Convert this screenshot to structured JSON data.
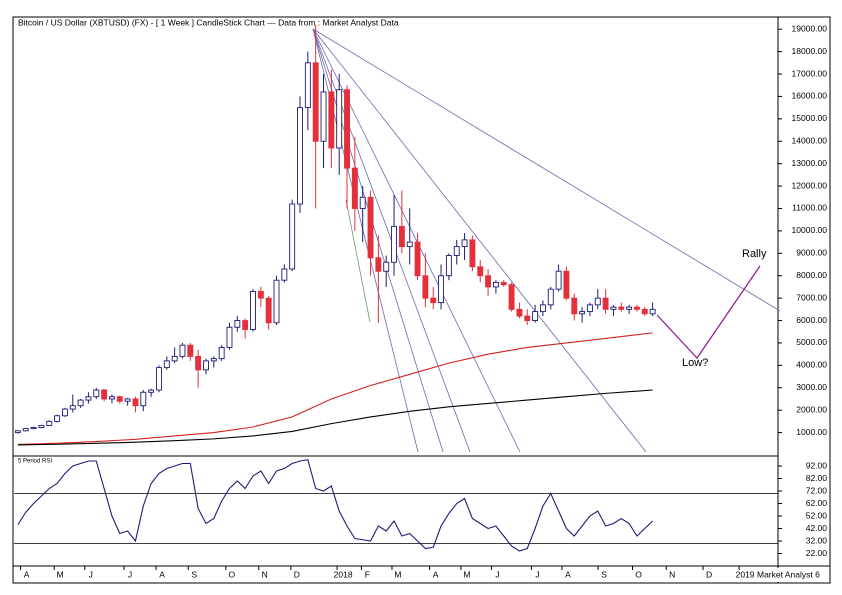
{
  "chart_data": [
    {
      "type": "candlestick",
      "title": "Bitcoin / US Dollar (XBTUSD) (FX) -  [ 1 Week ] CandleStick Chart --- Data from : Market Analyst Data",
      "up_color": "#1c1c78",
      "down_color": "#e3303a",
      "candles": [
        [
          1000,
          1100,
          950,
          1080
        ],
        [
          1080,
          1200,
          1050,
          1180
        ],
        [
          1180,
          1260,
          1150,
          1230
        ],
        [
          1230,
          1350,
          1200,
          1320
        ],
        [
          1320,
          1550,
          1300,
          1500
        ],
        [
          1500,
          1800,
          1450,
          1750
        ],
        [
          1750,
          2100,
          1700,
          2050
        ],
        [
          2050,
          2700,
          1900,
          2200
        ],
        [
          2200,
          2500,
          2100,
          2450
        ],
        [
          2450,
          2800,
          2300,
          2600
        ],
        [
          2600,
          3000,
          2500,
          2900
        ],
        [
          2900,
          2950,
          2400,
          2500
        ],
        [
          2500,
          2700,
          2300,
          2600
        ],
        [
          2600,
          2650,
          2300,
          2400
        ],
        [
          2400,
          2550,
          2200,
          2500
        ],
        [
          2500,
          2600,
          1900,
          2200
        ],
        [
          2200,
          2900,
          1950,
          2800
        ],
        [
          2800,
          2950,
          2600,
          2900
        ],
        [
          2900,
          4000,
          2800,
          3900
        ],
        [
          3900,
          4400,
          3800,
          4200
        ],
        [
          4200,
          4800,
          4100,
          4400
        ],
        [
          4400,
          5000,
          4300,
          4900
        ],
        [
          4900,
          5000,
          4200,
          4400
        ],
        [
          4400,
          4700,
          3000,
          3800
        ],
        [
          3800,
          4300,
          3600,
          4200
        ],
        [
          4200,
          4400,
          3900,
          4300
        ],
        [
          4300,
          4900,
          4200,
          4800
        ],
        [
          4800,
          5900,
          4700,
          5700
        ],
        [
          5700,
          6200,
          5500,
          6000
        ],
        [
          6000,
          6100,
          5200,
          5600
        ],
        [
          5600,
          7400,
          5500,
          7300
        ],
        [
          7300,
          7500,
          6600,
          7000
        ],
        [
          7000,
          7100,
          5600,
          5900
        ],
        [
          5900,
          8000,
          5800,
          7800
        ],
        [
          7800,
          8500,
          7700,
          8300
        ],
        [
          8300,
          11400,
          8200,
          11200
        ],
        [
          11200,
          16000,
          10800,
          15500
        ],
        [
          15500,
          18000,
          14500,
          17500
        ],
        [
          17500,
          19200,
          11000,
          14000
        ],
        [
          14000,
          17000,
          12800,
          16200
        ],
        [
          16200,
          17200,
          12800,
          13700
        ],
        [
          13700,
          17000,
          12500,
          16300
        ],
        [
          16300,
          16500,
          11000,
          12800
        ],
        [
          12800,
          14200,
          10000,
          11000
        ],
        [
          11000,
          12000,
          9500,
          11500
        ],
        [
          11500,
          11800,
          8000,
          8800
        ],
        [
          8800,
          9800,
          5900,
          8200
        ],
        [
          8200,
          8900,
          7500,
          8600
        ],
        [
          8600,
          11600,
          8000,
          10200
        ],
        [
          10200,
          11800,
          9000,
          9300
        ],
        [
          9300,
          11000,
          8500,
          9500
        ],
        [
          9500,
          9900,
          7800,
          8000
        ],
        [
          8000,
          9000,
          6600,
          7000
        ],
        [
          7000,
          7500,
          6500,
          6800
        ],
        [
          6800,
          8500,
          6500,
          8000
        ],
        [
          8000,
          9000,
          7800,
          8900
        ],
        [
          8900,
          9600,
          8500,
          9300
        ],
        [
          9300,
          9900,
          8700,
          9600
        ],
        [
          9600,
          9800,
          8200,
          8400
        ],
        [
          8400,
          8700,
          7700,
          8000
        ],
        [
          8000,
          8300,
          7100,
          7500
        ],
        [
          7500,
          7800,
          7200,
          7700
        ],
        [
          7700,
          7800,
          7500,
          7600
        ],
        [
          7600,
          7700,
          6400,
          6500
        ],
        [
          6500,
          6800,
          6100,
          6200
        ],
        [
          6200,
          6500,
          5800,
          6000
        ],
        [
          6000,
          6700,
          5900,
          6400
        ],
        [
          6400,
          6900,
          6200,
          6700
        ],
        [
          6700,
          7500,
          6500,
          7400
        ],
        [
          7400,
          8500,
          7300,
          8200
        ],
        [
          8200,
          8400,
          6900,
          7000
        ],
        [
          7000,
          7200,
          6000,
          6300
        ],
        [
          6300,
          6600,
          5900,
          6400
        ],
        [
          6400,
          6800,
          6200,
          6700
        ],
        [
          6700,
          7400,
          6500,
          7000
        ],
        [
          7000,
          7400,
          6300,
          6500
        ],
        [
          6500,
          6700,
          6200,
          6600
        ],
        [
          6600,
          6800,
          6400,
          6500
        ],
        [
          6500,
          6700,
          6300,
          6600
        ],
        [
          6600,
          6700,
          6400,
          6500
        ],
        [
          6500,
          6600,
          6200,
          6300
        ],
        [
          6300,
          6800,
          6200,
          6500
        ]
      ],
      "series": [
        {
          "color": "#d42020",
          "x": [
            0,
            5,
            10,
            15,
            20,
            25,
            30,
            35,
            40,
            45,
            50,
            55,
            60,
            65,
            70,
            75,
            81
          ],
          "values": [
            470,
            520,
            600,
            700,
            850,
            1000,
            1250,
            1700,
            2500,
            3100,
            3600,
            4100,
            4500,
            4800,
            5000,
            5200,
            5450
          ]
        },
        {
          "color": "#000000",
          "x": [
            0,
            5,
            10,
            15,
            20,
            25,
            30,
            35,
            40,
            45,
            50,
            55,
            60,
            65,
            70,
            75,
            81
          ],
          "values": [
            450,
            480,
            520,
            570,
            640,
            720,
            850,
            1050,
            1400,
            1700,
            1950,
            2150,
            2300,
            2450,
            2600,
            2750,
            2900
          ]
        }
      ],
      "annotations": [
        "Rally",
        "Low?"
      ],
      "xlim": [
        -0.5,
        97
      ],
      "xticks": [
        {
          "value": 1.1,
          "label": "A"
        },
        {
          "value": 5.4,
          "label": "M"
        },
        {
          "value": 9.3,
          "label": "J"
        },
        {
          "value": 14.3,
          "label": "J"
        },
        {
          "value": 18.4,
          "label": "A"
        },
        {
          "value": 22.5,
          "label": "S"
        },
        {
          "value": 27.3,
          "label": "O"
        },
        {
          "value": 31.5,
          "label": "N"
        },
        {
          "value": 35.6,
          "label": "D"
        },
        {
          "value": 41.5,
          "label": "2018"
        },
        {
          "value": 44.6,
          "label": "F"
        },
        {
          "value": 48.5,
          "label": "M"
        },
        {
          "value": 53.3,
          "label": "A"
        },
        {
          "value": 57.3,
          "label": "M"
        },
        {
          "value": 61.2,
          "label": "J"
        },
        {
          "value": 66.3,
          "label": "J"
        },
        {
          "value": 70.2,
          "label": "A"
        },
        {
          "value": 74.8,
          "label": "S"
        },
        {
          "value": 79.2,
          "label": "O"
        },
        {
          "value": 83.5,
          "label": "N"
        },
        {
          "value": 88.2,
          "label": "D"
        },
        {
          "value": 92.8,
          "label": "2019"
        }
      ],
      "ylim": [
        0,
        19500
      ],
      "yticks": [
        {
          "value": 1000,
          "label": "1000.00"
        },
        {
          "value": 2000,
          "label": "2000.00"
        },
        {
          "value": 3000,
          "label": "3000.00"
        },
        {
          "value": 4000,
          "label": "4000.00"
        },
        {
          "value": 5000,
          "label": "5000.00"
        },
        {
          "value": 6000,
          "label": "6000.00"
        },
        {
          "value": 7000,
          "label": "7000.00"
        },
        {
          "value": 8000,
          "label": "8000.00"
        },
        {
          "value": 9000,
          "label": "9000.00"
        },
        {
          "value": 10000,
          "label": "10000.00"
        },
        {
          "value": 11000,
          "label": "11000.00"
        },
        {
          "value": 12000,
          "label": "12000.00"
        },
        {
          "value": 13000,
          "label": "13000.00"
        },
        {
          "value": 14000,
          "label": "14000.00"
        },
        {
          "value": 15000,
          "label": "15000.00"
        },
        {
          "value": 16000,
          "label": "16000.00"
        },
        {
          "value": 17000,
          "label": "17000.00"
        },
        {
          "value": 18000,
          "label": "18000.00"
        },
        {
          "value": 19000,
          "label": "19000.00"
        }
      ],
      "footer": "Market Analyst 6"
    },
    {
      "type": "line",
      "title": "5 Period RSI",
      "color": "#1c1c78",
      "values": [
        45,
        55,
        62,
        68,
        74,
        78,
        86,
        92,
        94,
        96,
        96,
        74,
        52,
        38,
        40,
        32,
        60,
        78,
        86,
        90,
        92,
        94,
        94,
        58,
        46,
        50,
        64,
        74,
        80,
        74,
        84,
        88,
        78,
        88,
        90,
        94,
        96,
        97,
        74,
        72,
        76,
        56,
        44,
        34,
        33,
        32,
        44,
        40,
        48,
        36,
        38,
        32,
        26,
        27,
        44,
        54,
        62,
        66,
        50,
        46,
        42,
        44,
        36,
        28,
        24,
        26,
        42,
        60,
        70,
        56,
        42,
        36,
        44,
        52,
        56,
        44,
        46,
        50,
        46,
        36,
        42,
        48
      ],
      "levels": [
        70,
        30
      ],
      "ylim": [
        12,
        100
      ],
      "yticks": [
        {
          "value": 92,
          "label": "92.00"
        },
        {
          "value": 82,
          "label": "82.00"
        },
        {
          "value": 72,
          "label": "72.00"
        },
        {
          "value": 62,
          "label": "62.00"
        },
        {
          "value": 52,
          "label": "52.00"
        },
        {
          "value": 42,
          "label": "42.00"
        },
        {
          "value": 32,
          "label": "32.00"
        },
        {
          "value": 22,
          "label": "22.00"
        }
      ]
    }
  ]
}
